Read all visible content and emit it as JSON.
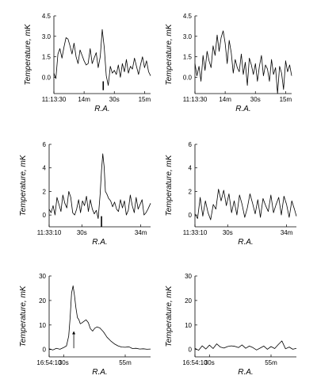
{
  "chart_data": [
    {
      "type": "line",
      "row": 1,
      "col": 1,
      "xlabel": "R.A.",
      "ylabel": "Temperature, mK",
      "xlim": [
        0,
        96
      ],
      "ylim": [
        -1.2,
        4.5
      ],
      "x_unit": "seconds after 11:13:30",
      "xticks": [
        {
          "v": 0,
          "label": "11:13:30"
        },
        {
          "v": 30,
          "label": "14m"
        },
        {
          "v": 60,
          "label": "30s"
        },
        {
          "v": 90,
          "label": "15m"
        }
      ],
      "yticks": [
        {
          "v": 0,
          "label": "0.0"
        },
        {
          "v": 1.5,
          "label": "1.5"
        },
        {
          "v": 3,
          "label": "3.0"
        },
        {
          "v": 4.5,
          "label": "4.5"
        }
      ],
      "marker": {
        "type": "bar",
        "x": 49,
        "y0": -0.3,
        "y1": -0.95
      },
      "series": [
        {
          "x": [
            0,
            2,
            4,
            6,
            8,
            10,
            12,
            14,
            16,
            18,
            20,
            22,
            24,
            26,
            28,
            30,
            32,
            34,
            36,
            38,
            40,
            42,
            44,
            46,
            48,
            50,
            52,
            54,
            56,
            58,
            60,
            62,
            64,
            66,
            68,
            70,
            72,
            74,
            76,
            78,
            80,
            82,
            84,
            86,
            88,
            90,
            92,
            94,
            96
          ],
          "y": [
            0.3,
            -0.1,
            1.7,
            2.1,
            1.4,
            2.2,
            2.9,
            2.8,
            2.3,
            1.7,
            2.5,
            1.5,
            1.0,
            2.0,
            1.6,
            1.2,
            0.9,
            1.0,
            2.1,
            1.0,
            1.4,
            1.8,
            0.7,
            1.5,
            3.5,
            2.2,
            0.1,
            -0.6,
            0.8,
            0.3,
            0.5,
            0.2,
            0.9,
            0.0,
            1.0,
            0.4,
            1.3,
            0.3,
            0.8,
            0.6,
            1.4,
            0.8,
            0.2,
            0.9,
            1.5,
            0.7,
            1.2,
            0.4,
            0.1
          ]
        }
      ]
    },
    {
      "type": "line",
      "row": 1,
      "col": 2,
      "xlabel": "R.A.",
      "ylabel": "Temperature, mK",
      "xlim": [
        0,
        96
      ],
      "ylim": [
        -1.2,
        4.5
      ],
      "x_unit": "seconds after 11:13:30",
      "xticks": [
        {
          "v": 0,
          "label": "11:13:30"
        },
        {
          "v": 30,
          "label": "14m"
        },
        {
          "v": 60,
          "label": "30s"
        },
        {
          "v": 90,
          "label": "15m"
        }
      ],
      "yticks": [
        {
          "v": 0,
          "label": "0.0"
        },
        {
          "v": 1.5,
          "label": "1.5"
        },
        {
          "v": 3,
          "label": "3.0"
        },
        {
          "v": 4.5,
          "label": "4.5"
        }
      ],
      "series": [
        {
          "x": [
            0,
            2,
            4,
            6,
            8,
            10,
            12,
            14,
            16,
            18,
            20,
            22,
            24,
            26,
            28,
            30,
            32,
            34,
            36,
            38,
            40,
            42,
            44,
            46,
            48,
            50,
            52,
            54,
            56,
            58,
            60,
            62,
            64,
            66,
            68,
            70,
            72,
            74,
            76,
            78,
            80,
            82,
            84,
            86,
            88,
            90,
            92,
            94,
            96
          ],
          "y": [
            1.0,
            0.1,
            0.8,
            -0.3,
            1.6,
            0.5,
            1.9,
            1.2,
            0.7,
            2.3,
            1.6,
            3.1,
            1.9,
            2.9,
            3.4,
            2.5,
            1.0,
            2.7,
            1.8,
            0.3,
            1.3,
            0.7,
            0.4,
            1.7,
            0.2,
            1.1,
            -0.6,
            1.4,
            0.9,
            0.2,
            1.0,
            -0.3,
            0.8,
            1.6,
            0.1,
            0.9,
            0.6,
            -0.3,
            1.3,
            0.2,
            0.7,
            -1.2,
            0.8,
            0.3,
            -0.9,
            1.2,
            0.4,
            0.9,
            0.1
          ]
        }
      ]
    },
    {
      "type": "line",
      "row": 2,
      "col": 1,
      "xlabel": "R.A.",
      "ylabel": "Temperature, mK",
      "xlim": [
        0,
        155
      ],
      "ylim": [
        -1,
        6
      ],
      "x_unit": "seconds after 11:33:10",
      "xticks": [
        {
          "v": 0,
          "label": "11:33:10"
        },
        {
          "v": 50,
          "label": "30s"
        },
        {
          "v": 140,
          "label": "34m"
        }
      ],
      "yticks": [
        {
          "v": 0,
          "label": "0"
        },
        {
          "v": 2,
          "label": "2"
        },
        {
          "v": 4,
          "label": "4"
        },
        {
          "v": 6,
          "label": "6"
        }
      ],
      "marker": {
        "type": "bar",
        "x": 80,
        "y0": -0.1,
        "y1": -1.0
      },
      "series": [
        {
          "x": [
            0,
            3,
            6,
            9,
            12,
            15,
            18,
            21,
            24,
            27,
            30,
            33,
            36,
            39,
            42,
            45,
            48,
            51,
            54,
            57,
            60,
            63,
            66,
            69,
            72,
            75,
            78,
            80,
            82,
            84,
            86,
            88,
            91,
            94,
            97,
            100,
            103,
            106,
            109,
            112,
            115,
            118,
            121,
            124,
            127,
            130,
            133,
            136,
            139,
            142,
            145,
            148,
            151,
            155
          ],
          "y": [
            0.5,
            0.2,
            0.8,
            0.0,
            1.5,
            0.9,
            0.3,
            1.7,
            1.0,
            0.6,
            2.0,
            1.5,
            0.2,
            0.0,
            0.5,
            1.3,
            0.2,
            1.2,
            0.8,
            1.6,
            0.3,
            1.3,
            0.5,
            0.1,
            0.4,
            -0.3,
            1.8,
            3.8,
            5.2,
            4.1,
            2.0,
            1.8,
            1.4,
            1.2,
            0.7,
            1.1,
            0.5,
            0.3,
            1.3,
            0.6,
            1.2,
            0.0,
            0.4,
            1.7,
            0.8,
            0.2,
            1.5,
            0.5,
            0.9,
            1.3,
            0.0,
            0.2,
            0.5,
            1.0
          ]
        }
      ]
    },
    {
      "type": "line",
      "row": 2,
      "col": 2,
      "xlabel": "R.A.",
      "ylabel": "Temperature, mK",
      "xlim": [
        0,
        155
      ],
      "ylim": [
        -1,
        6
      ],
      "x_unit": "seconds after 11:33:10",
      "xticks": [
        {
          "v": 0,
          "label": "11:33:10"
        },
        {
          "v": 50,
          "label": "30s"
        },
        {
          "v": 140,
          "label": "34m"
        }
      ],
      "yticks": [
        {
          "v": 0,
          "label": "0"
        },
        {
          "v": 2,
          "label": "2"
        },
        {
          "v": 4,
          "label": "4"
        },
        {
          "v": 6,
          "label": "6"
        }
      ],
      "series": [
        {
          "x": [
            0,
            4,
            8,
            12,
            16,
            20,
            24,
            28,
            32,
            36,
            40,
            44,
            48,
            52,
            56,
            60,
            64,
            68,
            72,
            76,
            80,
            84,
            88,
            92,
            96,
            100,
            104,
            108,
            112,
            116,
            120,
            124,
            128,
            132,
            136,
            140,
            144,
            148,
            152,
            155
          ],
          "y": [
            0.1,
            -0.3,
            1.5,
            -0.1,
            1.2,
            0.2,
            -0.4,
            0.9,
            0.5,
            2.2,
            1.2,
            2.1,
            0.8,
            1.8,
            0.2,
            1.2,
            0.0,
            1.7,
            0.9,
            -0.2,
            0.6,
            1.8,
            1.0,
            0.1,
            1.3,
            -0.2,
            1.4,
            0.8,
            0.3,
            1.7,
            0.2,
            0.9,
            1.5,
            0.0,
            1.6,
            0.9,
            -0.2,
            1.2,
            0.5,
            -0.1
          ]
        }
      ]
    },
    {
      "type": "line",
      "row": 3,
      "col": 1,
      "xlabel": "R.A.",
      "ylabel": "Temperature, mK",
      "xlim": [
        0,
        140
      ],
      "ylim": [
        -3,
        30
      ],
      "x_unit": "seconds after 16:54:10",
      "xticks": [
        {
          "v": 0,
          "label": "16:54:10"
        },
        {
          "v": 20,
          "label": "30s"
        },
        {
          "v": 105,
          "label": "55m"
        }
      ],
      "yticks": [
        {
          "v": 0,
          "label": "0"
        },
        {
          "v": 10,
          "label": "10"
        },
        {
          "v": 20,
          "label": "20"
        },
        {
          "v": 30,
          "label": "30"
        }
      ],
      "marker": {
        "type": "arrow",
        "x": 34,
        "y0": 0.5,
        "y1": 7.5
      },
      "series": [
        {
          "x": [
            0,
            5,
            10,
            15,
            20,
            24,
            27,
            29,
            31,
            33,
            35,
            37,
            39,
            41,
            43,
            45,
            48,
            51,
            54,
            57,
            60,
            63,
            66,
            70,
            75,
            80,
            85,
            90,
            95,
            100,
            105,
            110,
            115,
            120,
            125,
            130,
            135,
            140
          ],
          "y": [
            0.3,
            -0.2,
            0.5,
            0.1,
            0.8,
            1.5,
            5.5,
            13,
            23,
            26,
            22,
            17,
            13,
            12.2,
            10.5,
            10.8,
            11.5,
            12.1,
            11,
            8.5,
            7.5,
            8.7,
            9.2,
            8.8,
            7.2,
            5,
            3.5,
            2.3,
            1.5,
            1.0,
            0.9,
            1.1,
            0.4,
            0.5,
            0.2,
            0.3,
            0.1,
            0.2
          ]
        }
      ]
    },
    {
      "type": "line",
      "row": 3,
      "col": 2,
      "xlabel": "R.A.",
      "ylabel": "Temperature, mK",
      "xlim": [
        0,
        140
      ],
      "ylim": [
        -3,
        30
      ],
      "x_unit": "seconds after 16:54:10",
      "xticks": [
        {
          "v": 0,
          "label": "16:54:10"
        },
        {
          "v": 20,
          "label": "30s"
        },
        {
          "v": 105,
          "label": "55m"
        }
      ],
      "yticks": [
        {
          "v": 0,
          "label": "0"
        },
        {
          "v": 10,
          "label": "10"
        },
        {
          "v": 20,
          "label": "20"
        },
        {
          "v": 30,
          "label": "30"
        }
      ],
      "series": [
        {
          "x": [
            0,
            5,
            10,
            15,
            20,
            25,
            30,
            35,
            40,
            45,
            50,
            55,
            60,
            65,
            70,
            75,
            80,
            85,
            90,
            95,
            100,
            105,
            110,
            115,
            120,
            125,
            130,
            135,
            140
          ],
          "y": [
            0.5,
            -0.3,
            1.5,
            0.2,
            1.8,
            0.4,
            2.3,
            1.0,
            0.6,
            1.2,
            1.5,
            1.3,
            0.8,
            1.9,
            0.5,
            1.4,
            0.8,
            -0.2,
            0.6,
            1.4,
            0.1,
            1.2,
            0.4,
            2.0,
            3.5,
            0.3,
            1.0,
            0.1,
            0.5
          ]
        }
      ]
    }
  ]
}
